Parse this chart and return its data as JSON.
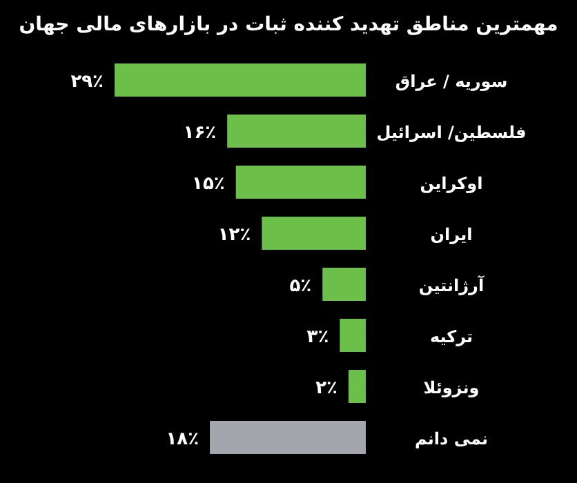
{
  "chart_data": {
    "type": "bar",
    "orientation": "horizontal",
    "title": "مهمترین مناطق تهدید کننده ثبات در بازارهای مالی جهان",
    "categories": [
      "سوریه / عراق",
      "فلسطین/ اسرائیل",
      "اوکراین",
      "ایران",
      "آرژانتین",
      "ترکیه",
      "ونزوئلا",
      "نمی دانم"
    ],
    "values": [
      29,
      16,
      15,
      12,
      5,
      3,
      2,
      18
    ],
    "value_labels": [
      "۲۹٪",
      "۱۶٪",
      "۱۵٪",
      "۱۲٪",
      "۵٪",
      "۳٪",
      "۲٪",
      "۱۸٪"
    ],
    "colors": [
      "#6cc04a",
      "#6cc04a",
      "#6cc04a",
      "#6cc04a",
      "#6cc04a",
      "#6cc04a",
      "#6cc04a",
      "#a3a7ad"
    ]
  }
}
